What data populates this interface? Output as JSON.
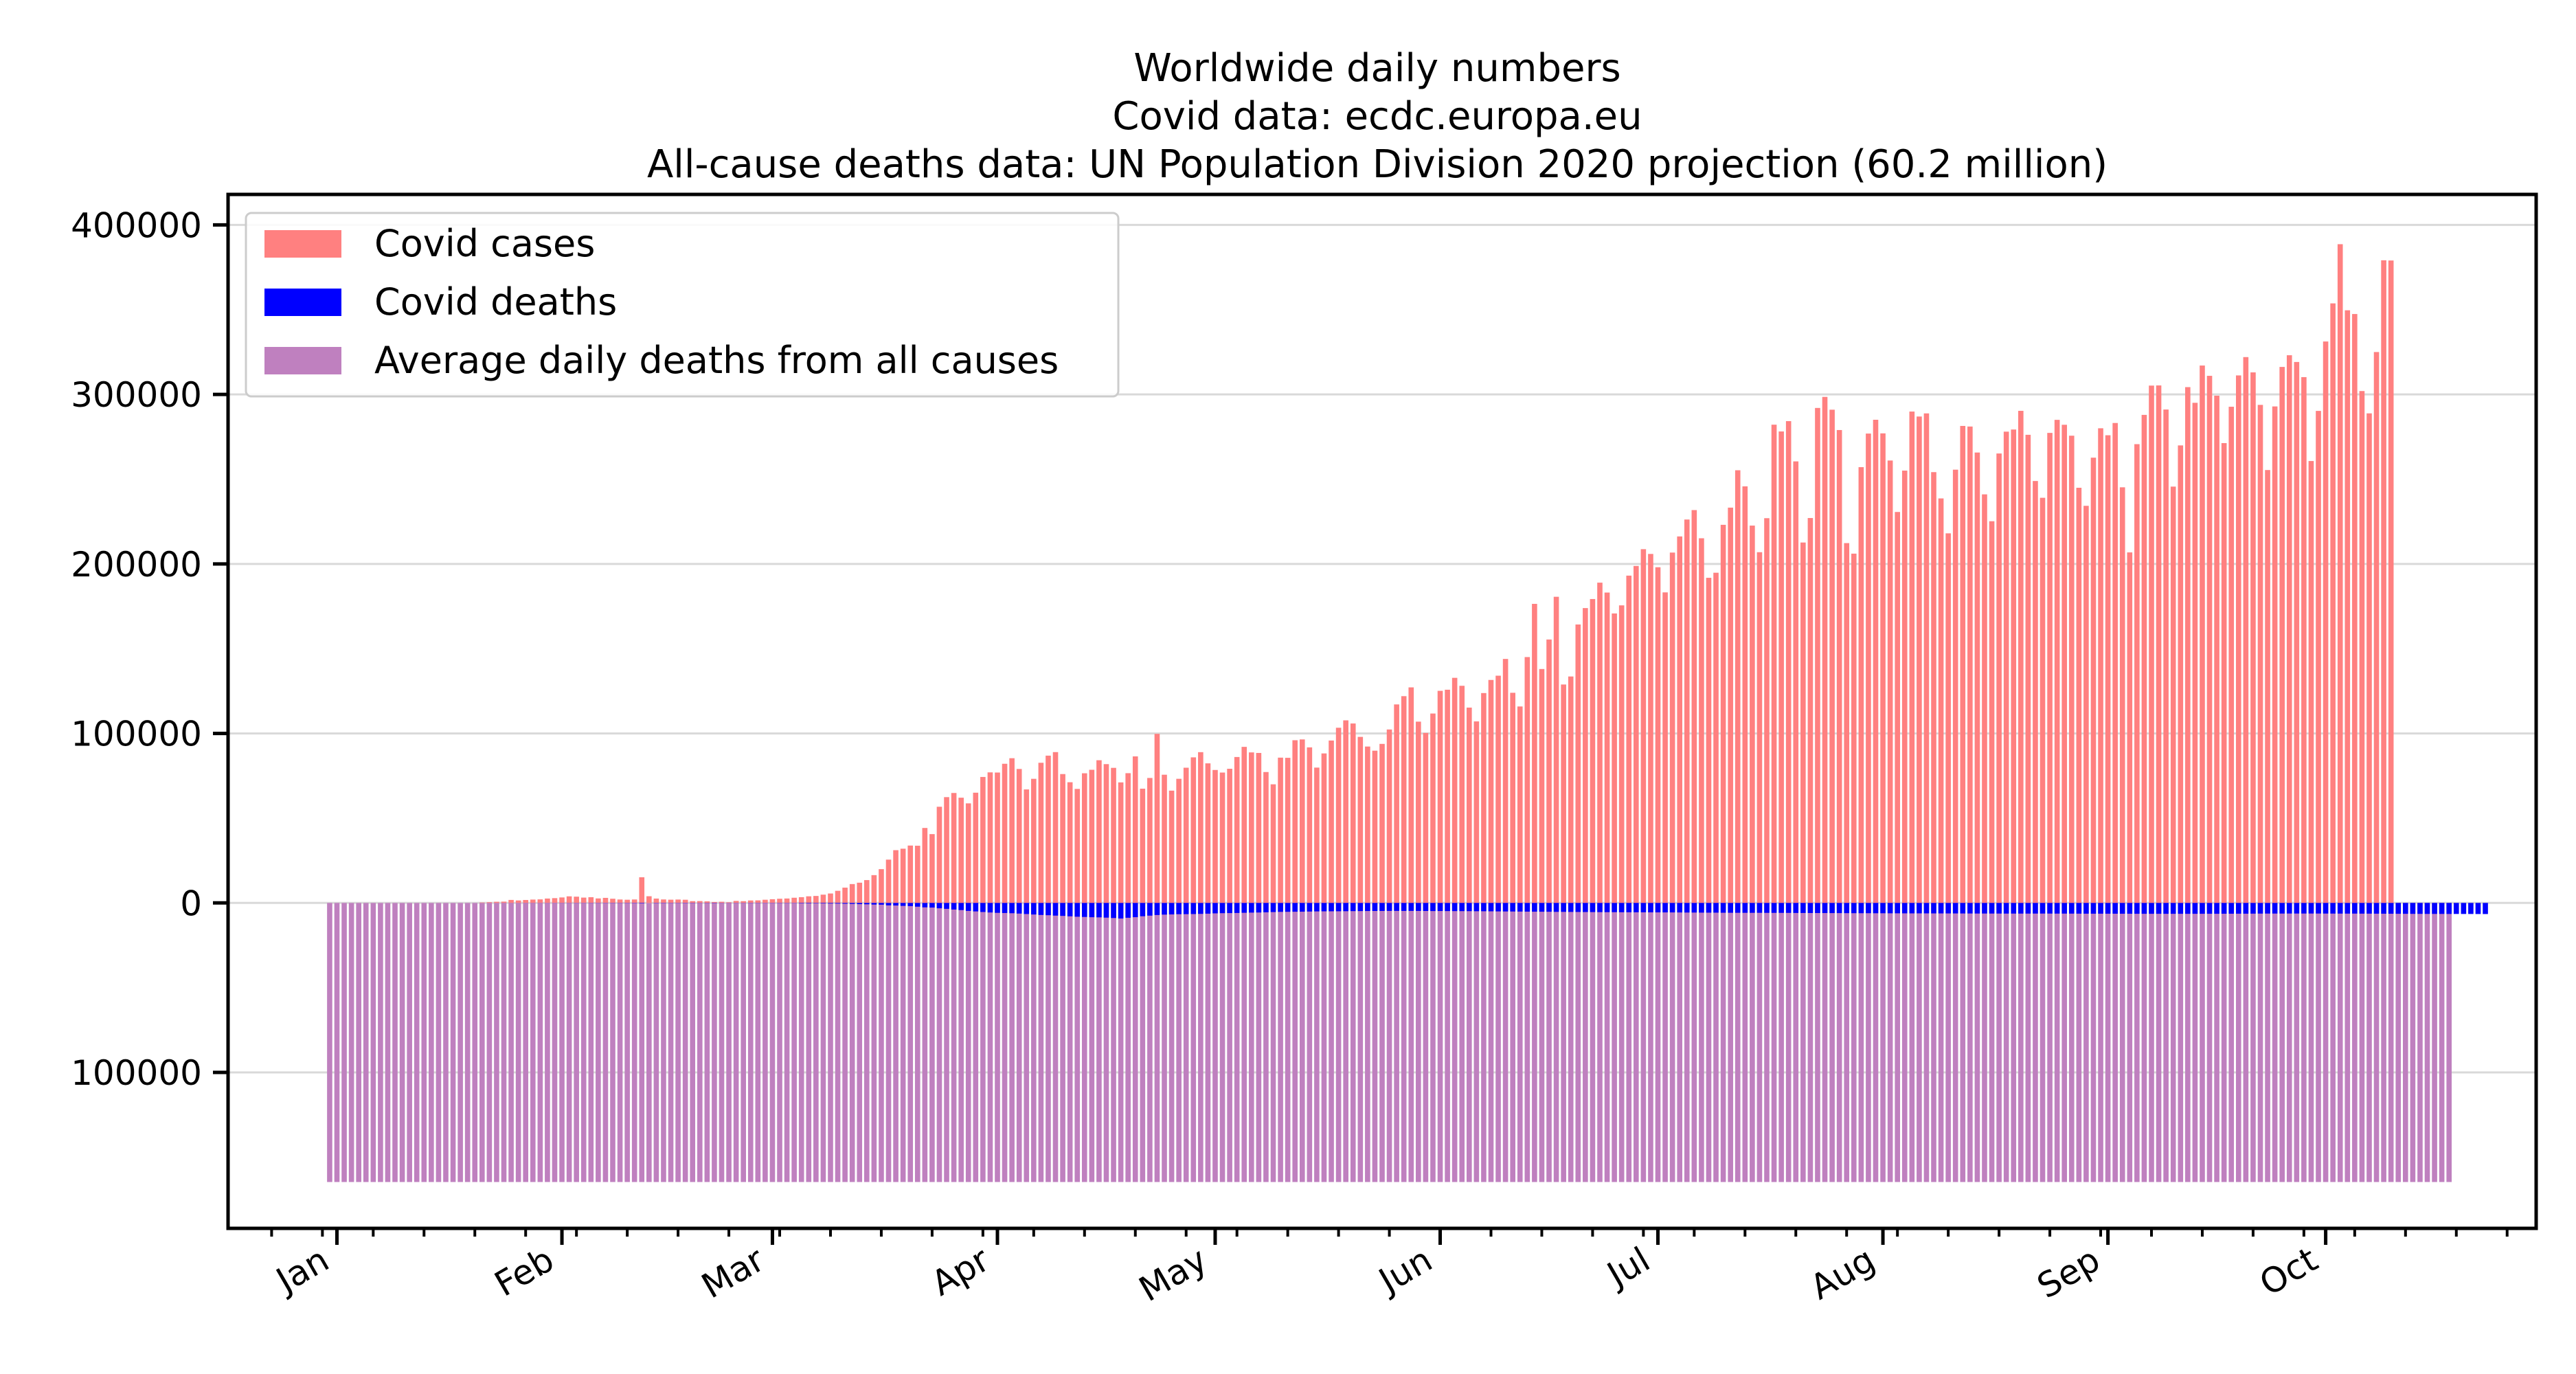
{
  "chart_data": {
    "type": "bar",
    "title_lines": [
      "Worldwide daily numbers",
      "Covid data: ecdc.europa.eu",
      "All-cause deaths data: UN Population Division 2020 projection (60.2 million)"
    ],
    "xlabel": "",
    "ylabel": "",
    "x_start": "2019-12-31",
    "x_end": "2020-10-18",
    "x_tick_labels": [
      "Jan",
      "Feb",
      "Mar",
      "Apr",
      "May",
      "Jun",
      "Jul",
      "Aug",
      "Sep",
      "Oct"
    ],
    "x_ticks": [
      "2020-01-01",
      "2020-02-01",
      "2020-03-01",
      "2020-04-01",
      "2020-05-01",
      "2020-06-01",
      "2020-07-01",
      "2020-08-01",
      "2020-09-01",
      "2020-10-01"
    ],
    "xlim": [
      "2019-12-17",
      "2020-10-30"
    ],
    "ylim": [
      -192000,
      418000
    ],
    "y_ticks": [
      400000,
      300000,
      200000,
      100000,
      0,
      -100000
    ],
    "y_tick_labels": [
      "400000",
      "300000",
      "200000",
      "100000",
      "0",
      "100000"
    ],
    "grid": "y",
    "legend_position": "top-left",
    "series": [
      {
        "name": "Covid cases",
        "color": "#ff8080",
        "direction": "up",
        "values": [
          0,
          0,
          0,
          0,
          0,
          0,
          0,
          0,
          0,
          0,
          0,
          0,
          0,
          0,
          0,
          0,
          0,
          0,
          0,
          0,
          0,
          259,
          457,
          688,
          769,
          1771,
          1459,
          1737,
          1981,
          2099,
          2589,
          2825,
          3235,
          3884,
          3694,
          3143,
          3385,
          2652,
          2984,
          2473,
          2022,
          1880,
          2032,
          15152,
          3950,
          2573,
          2049,
          1907,
          2001,
          1874,
          1049,
          1095,
          925,
          570,
          694,
          407,
          1191,
          1034,
          1456,
          1508,
          1878,
          2189,
          2464,
          2612,
          3058,
          3393,
          3902,
          4116,
          4882,
          5563,
          7150,
          9016,
          11131,
          11935,
          13466,
          16398,
          19922,
          25546,
          31121,
          31994,
          33848,
          33744,
          44221,
          40601,
          56738,
          62414,
          64869,
          62081,
          58741,
          65032,
          74318,
          77028,
          76926,
          82097,
          85376,
          79020,
          66961,
          73219,
          82684,
          86891,
          88974,
          76024,
          71204,
          67263,
          76490,
          78549,
          84183,
          81887,
          79689,
          71112,
          76547,
          86447,
          67398,
          73722,
          99757,
          75636,
          66244,
          73226,
          79767,
          85883,
          88949,
          82349,
          78437,
          76919,
          79151,
          86089,
          92066,
          88804,
          88484,
          77225,
          69981,
          85716,
          85612,
          95987,
          96461,
          91768,
          79842,
          88196,
          95810,
          103355,
          107722,
          105860,
          97961,
          92263,
          89817,
          93829,
          102328,
          117117,
          121989,
          127170,
          106958,
          100307,
          111742,
          125128,
          125785,
          132802,
          128105,
          115237,
          107090,
          123813,
          131549,
          134063,
          143947,
          123979,
          115903,
          145054,
          176443,
          138003,
          155416,
          180621,
          128861,
          133591,
          164262,
          173950,
          179294,
          188952,
          183114,
          170778,
          175553,
          193101,
          198804,
          208706,
          205897,
          198048,
          183213,
          206698,
          216224,
          226202,
          231766,
          215145,
          191817,
          194806,
          223080,
          233212,
          255262,
          245771,
          222618,
          206919,
          226986,
          282149,
          278153,
          284245,
          260493,
          212633,
          227081,
          292024,
          298543,
          290989,
          278990,
          212286,
          206071,
          257108,
          276913,
          285053,
          277031,
          261012,
          230651,
          255064,
          289897,
          286968,
          288817,
          254154,
          238648,
          218043,
          255611,
          281416,
          281065,
          265722,
          241043,
          225188,
          265155,
          278041,
          279296,
          290316,
          276186,
          248924,
          239018,
          277311,
          285001,
          282099,
          275651,
          244937,
          234281,
          262693,
          280032,
          275917,
          283149,
          245208,
          206800,
          270659,
          287932,
          305213,
          305307,
          291095,
          245617,
          269922,
          304311,
          295059,
          317047,
          310977,
          299262,
          271289,
          292734,
          311219,
          322029,
          313004,
          293834,
          255393,
          292920,
          316226,
          323127,
          319148,
          310208,
          260713,
          290286,
          331228,
          353716,
          388640,
          349641,
          347440,
          301998,
          288836,
          325016,
          379140,
          379012
        ]
      },
      {
        "name": "Covid deaths",
        "color": "#0000ff",
        "direction": "down",
        "values": [
          0,
          0,
          0,
          0,
          0,
          0,
          0,
          0,
          0,
          0,
          0,
          0,
          0,
          0,
          0,
          0,
          0,
          0,
          0,
          0,
          0,
          8,
          16,
          15,
          24,
          25,
          26,
          38,
          43,
          46,
          45,
          57,
          64,
          66,
          73,
          73,
          86,
          89,
          97,
          108,
          97,
          106,
          143,
          254,
          5,
          139,
          143,
          106,
          98,
          139,
          117,
          74,
          98,
          151,
          71,
          56,
          75,
          73,
          112,
          108,
          87,
          102,
          127,
          107,
          105,
          237,
          283,
          201,
          292,
          347,
          368,
          449,
          565,
          704,
          801,
          963,
          1037,
          1436,
          1530,
          1732,
          1865,
          2219,
          2597,
          2723,
          3162,
          3488,
          3898,
          4210,
          4699,
          5006,
          5346,
          5634,
          5844,
          5945,
          6075,
          6285,
          6541,
          6830,
          7097,
          7253,
          7490,
          7642,
          7891,
          8136,
          8278,
          8432,
          8512,
          8677,
          8905,
          9178,
          8751,
          8412,
          7855,
          7503,
          7126,
          6901,
          6783,
          6643,
          6609,
          6557,
          6465,
          6332,
          6154,
          6050,
          5999,
          5922,
          5813,
          5708,
          5642,
          5525,
          5375,
          5278,
          5231,
          5185,
          5159,
          5084,
          4996,
          4954,
          4932,
          4922,
          4877,
          4831,
          4808,
          4771,
          4745,
          4732,
          4705,
          4692,
          4705,
          4700,
          4712,
          4739,
          4794,
          4772,
          4805,
          4824,
          4835,
          4852,
          4893,
          4907,
          4946,
          4996,
          5035,
          5060,
          5098,
          5134,
          5167,
          5180,
          5207,
          5264,
          5269,
          5311,
          5324,
          5361,
          5396,
          5426,
          5444,
          5451,
          5494,
          5499,
          5516,
          5534,
          5559,
          5566,
          5586,
          5596,
          5618,
          5665,
          5678,
          5726,
          5738,
          5734,
          5790,
          5807,
          5810,
          5826,
          5835,
          5835,
          5852,
          5860,
          5865,
          5876,
          5912,
          5932,
          5954,
          5970,
          5972,
          5998,
          6009,
          6031,
          6056,
          6066,
          6067,
          6090,
          6093,
          6118,
          6122,
          6147,
          6159,
          6156,
          6162,
          6183,
          6188,
          6194,
          6199,
          6218,
          6229,
          6255,
          6258,
          6267,
          6271,
          6283,
          6285,
          6294,
          6294,
          6282,
          6276,
          6285,
          6297,
          6300,
          6308,
          6325,
          6336,
          6347,
          6345,
          6353,
          6359,
          6373,
          6379,
          6389,
          6405,
          6407,
          6400,
          6406,
          6406,
          6408,
          6415,
          6407,
          6398,
          6393,
          6390,
          6371,
          6362,
          6345,
          6337,
          6319,
          6296,
          6277,
          6277,
          6271,
          6253,
          6253,
          6256,
          6251,
          6260,
          6273,
          6283,
          6297,
          6305,
          6301,
          6322,
          6329,
          6337,
          6357,
          6369,
          6397,
          6412,
          6440,
          6451,
          6468,
          6477,
          6484,
          6496,
          6501,
          6509,
          6522,
          6541,
          6556
        ]
      },
      {
        "name": "Average daily deaths from all causes",
        "color": "#bf80bf",
        "direction": "down",
        "constant_value": 164658
      }
    ]
  }
}
